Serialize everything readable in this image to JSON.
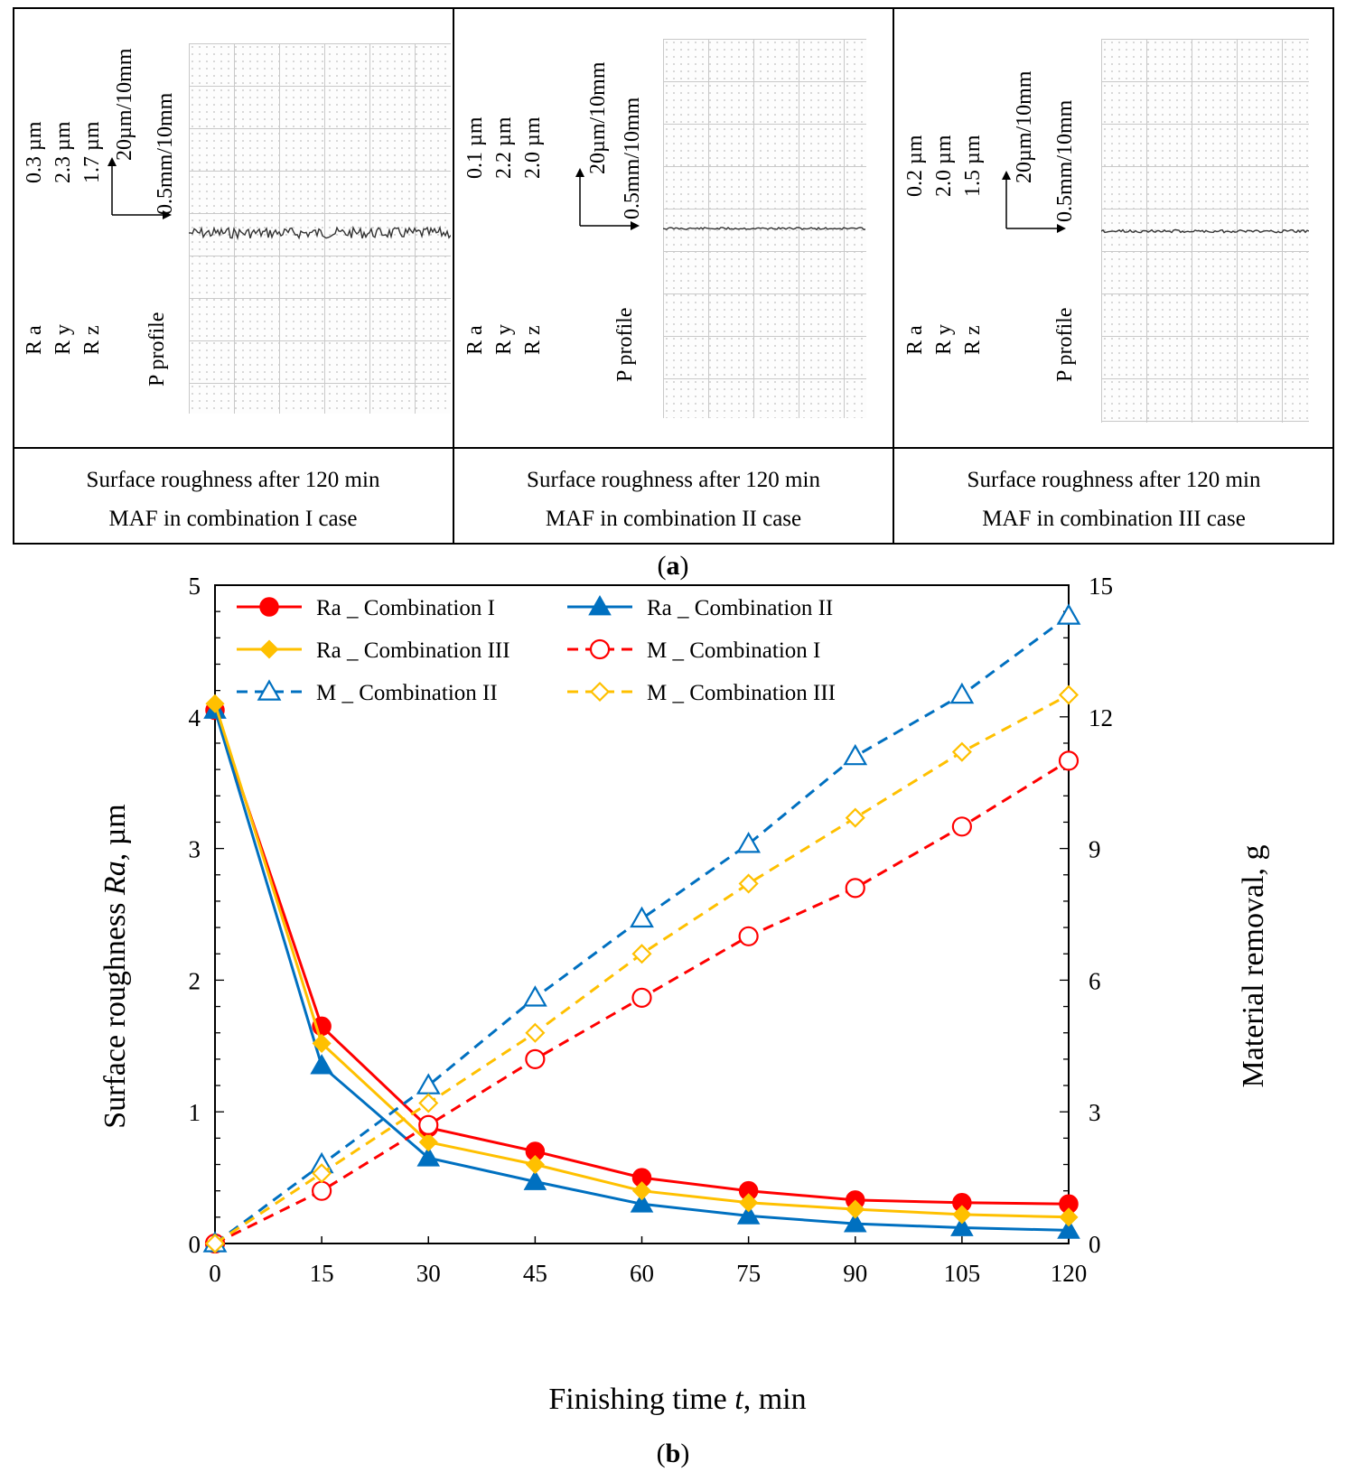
{
  "panel_a": {
    "label_prefix": "(",
    "label_letter": "a",
    "label_suffix": ")",
    "param_names": [
      "R a",
      "R y",
      "R z"
    ],
    "profile_label": "P profile",
    "scale_vertical": "20µm/10mm",
    "scale_horizontal": "0.5mm/10mm",
    "cells": [
      {
        "values": [
          "0.3 µm",
          "2.3 µm",
          "1.7 µm"
        ],
        "caption_line1": "Surface roughness after 120 min",
        "caption_line2": "MAF in combination I case"
      },
      {
        "values": [
          "0.1 µm",
          "2.2 µm",
          "2.0 µm"
        ],
        "caption_line1": "Surface roughness after 120 min",
        "caption_line2": "MAF in combination II case"
      },
      {
        "values": [
          "0.2 µm",
          "2.0 µm",
          "1.5 µm"
        ],
        "caption_line1": "Surface roughness after 120 min",
        "caption_line2": "MAF in combination III case"
      }
    ]
  },
  "panel_b": {
    "label_prefix": "(",
    "label_letter": "b",
    "label_suffix": ")"
  },
  "chart_data": {
    "type": "line",
    "xlabel_main": "Finishing time ",
    "xlabel_italic": "t",
    "xlabel_unit": ", min",
    "ylabel_main": "Surface roughness ",
    "ylabel_italic": "Ra",
    "ylabel_unit": ", µm",
    "y2label": "Material removal, g",
    "x": [
      0,
      15,
      30,
      45,
      60,
      75,
      90,
      105,
      120
    ],
    "xlim": [
      0,
      120
    ],
    "ylim": [
      0,
      5
    ],
    "y2lim": [
      0,
      15
    ],
    "xticks": [
      "0",
      "15",
      "30",
      "45",
      "60",
      "75",
      "90",
      "105",
      "120"
    ],
    "yticks": [
      "0",
      "1",
      "2",
      "3",
      "4",
      "5"
    ],
    "y2ticks": [
      "0",
      "3",
      "6",
      "9",
      "12",
      "15"
    ],
    "grid": false,
    "legend_position": "top-left",
    "series": [
      {
        "name": "Ra _ Combination I",
        "axis": "left",
        "color": "#ff0000",
        "dash": false,
        "marker": "circle",
        "filled": true,
        "values": [
          4.05,
          1.65,
          0.88,
          0.7,
          0.5,
          0.4,
          0.33,
          0.31,
          0.3
        ]
      },
      {
        "name": "Ra _ Combination II",
        "axis": "left",
        "color": "#0070c0",
        "dash": false,
        "marker": "triangle",
        "filled": true,
        "values": [
          4.05,
          1.35,
          0.65,
          0.47,
          0.3,
          0.21,
          0.15,
          0.12,
          0.1
        ]
      },
      {
        "name": "Ra _ Combination III",
        "axis": "left",
        "color": "#ffc000",
        "dash": false,
        "marker": "diamond",
        "filled": true,
        "values": [
          4.1,
          1.52,
          0.77,
          0.6,
          0.4,
          0.31,
          0.26,
          0.22,
          0.2
        ]
      },
      {
        "name": "M _ Combination I",
        "axis": "right",
        "color": "#ff0000",
        "dash": true,
        "marker": "circle",
        "filled": false,
        "values": [
          0,
          1.2,
          2.7,
          4.2,
          5.6,
          7.0,
          8.1,
          9.5,
          11.0
        ]
      },
      {
        "name": "M _ Combination II",
        "axis": "right",
        "color": "#0070c0",
        "dash": true,
        "marker": "triangle",
        "filled": false,
        "values": [
          0,
          1.8,
          3.6,
          5.6,
          7.4,
          9.1,
          11.1,
          12.5,
          14.3
        ]
      },
      {
        "name": "M _ Combination III",
        "axis": "right",
        "color": "#ffc000",
        "dash": true,
        "marker": "diamond",
        "filled": false,
        "values": [
          0,
          1.6,
          3.2,
          4.8,
          6.6,
          8.2,
          9.7,
          11.2,
          12.5
        ]
      }
    ]
  }
}
